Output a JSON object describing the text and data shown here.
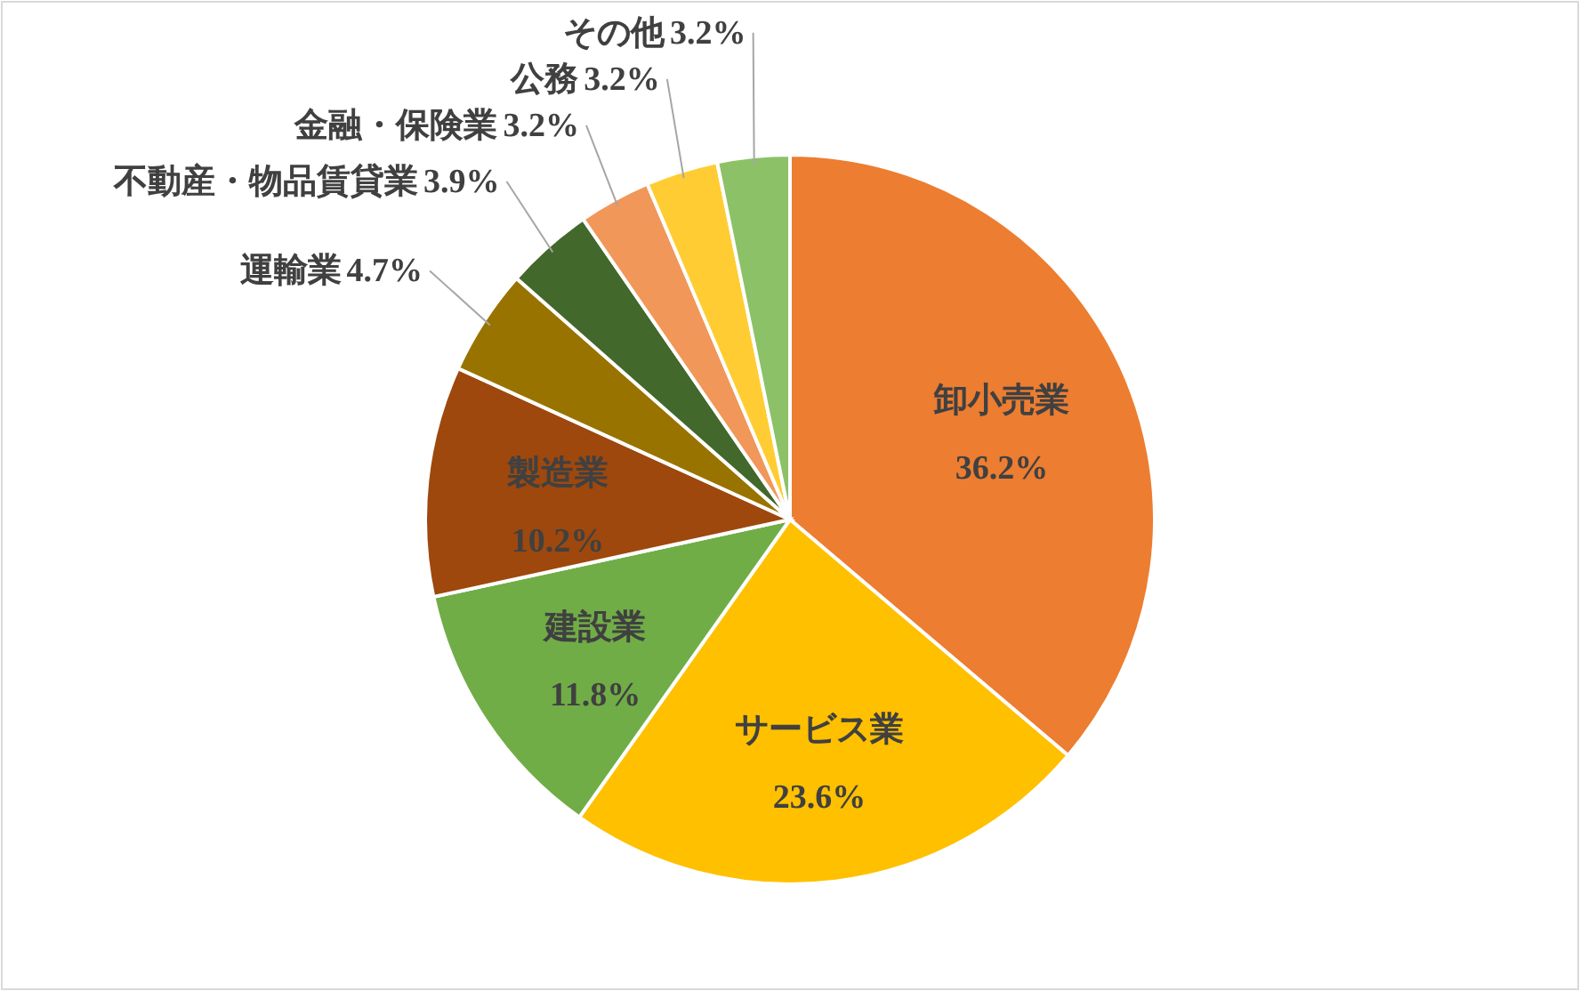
{
  "chart_data": {
    "type": "pie",
    "categories": [
      "卸小売業",
      "サービス業",
      "建設業",
      "製造業",
      "運輸業",
      "不動産・物品賃貸業",
      "金融・保険業",
      "公務",
      "その他"
    ],
    "values": [
      36.2,
      23.6,
      11.8,
      10.2,
      4.7,
      3.9,
      3.2,
      3.2,
      3.2
    ],
    "colors": [
      "#ed7d31",
      "#ffc000",
      "#70ad47",
      "#9e480e",
      "#997300",
      "#43682b",
      "#f1975a",
      "#ffcd33",
      "#8cc168"
    ],
    "value_labels": [
      "36.2%",
      "23.6%",
      "11.8%",
      "10.2%",
      "4.7%",
      "3.9%",
      "3.2%",
      "3.2%",
      "3.2%"
    ]
  }
}
